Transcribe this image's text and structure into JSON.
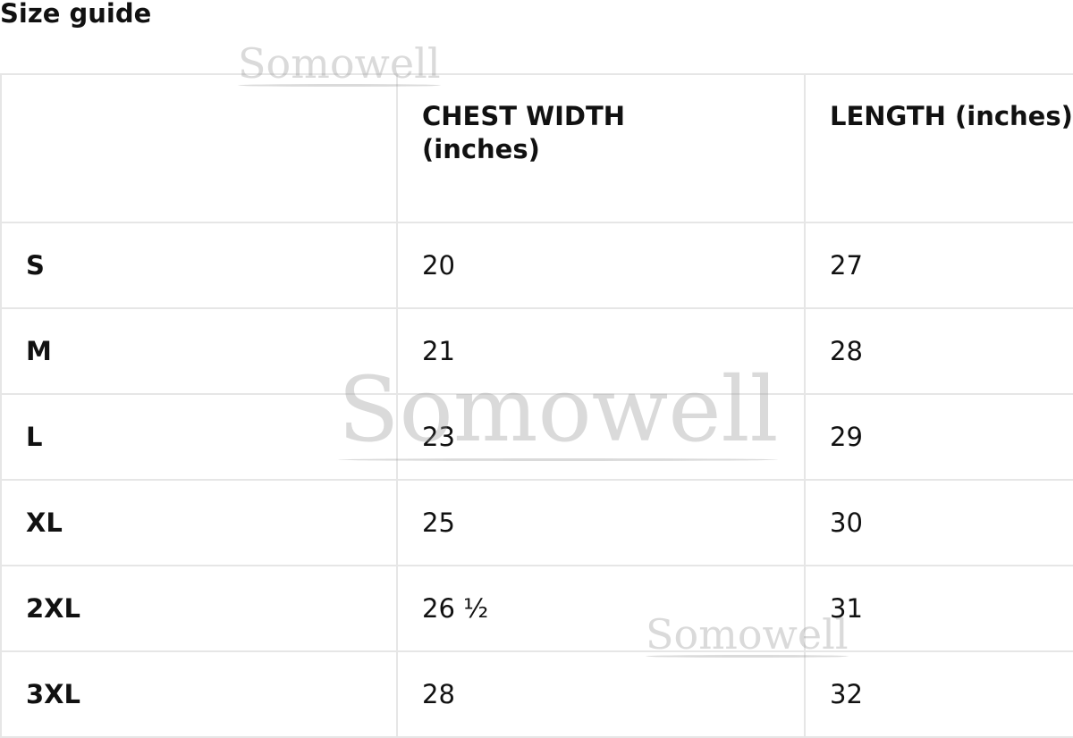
{
  "title": "Size guide",
  "table": {
    "headers": [
      "",
      "CHEST WIDTH (inches)",
      "LENGTH (inches)"
    ],
    "rows": [
      {
        "size": "S",
        "chest": "20",
        "length": "27"
      },
      {
        "size": "M",
        "chest": "21",
        "length": "28"
      },
      {
        "size": "L",
        "chest": "23",
        "length": "29"
      },
      {
        "size": "XL",
        "chest": "25",
        "length": "30"
      },
      {
        "size": "2XL",
        "chest": "26 ½",
        "length": "31"
      },
      {
        "size": "3XL",
        "chest": "28",
        "length": "32"
      }
    ]
  },
  "watermark": "Somowell",
  "colors": {
    "border": "#e6e6e6",
    "text": "#111111",
    "watermark": "#969696"
  }
}
